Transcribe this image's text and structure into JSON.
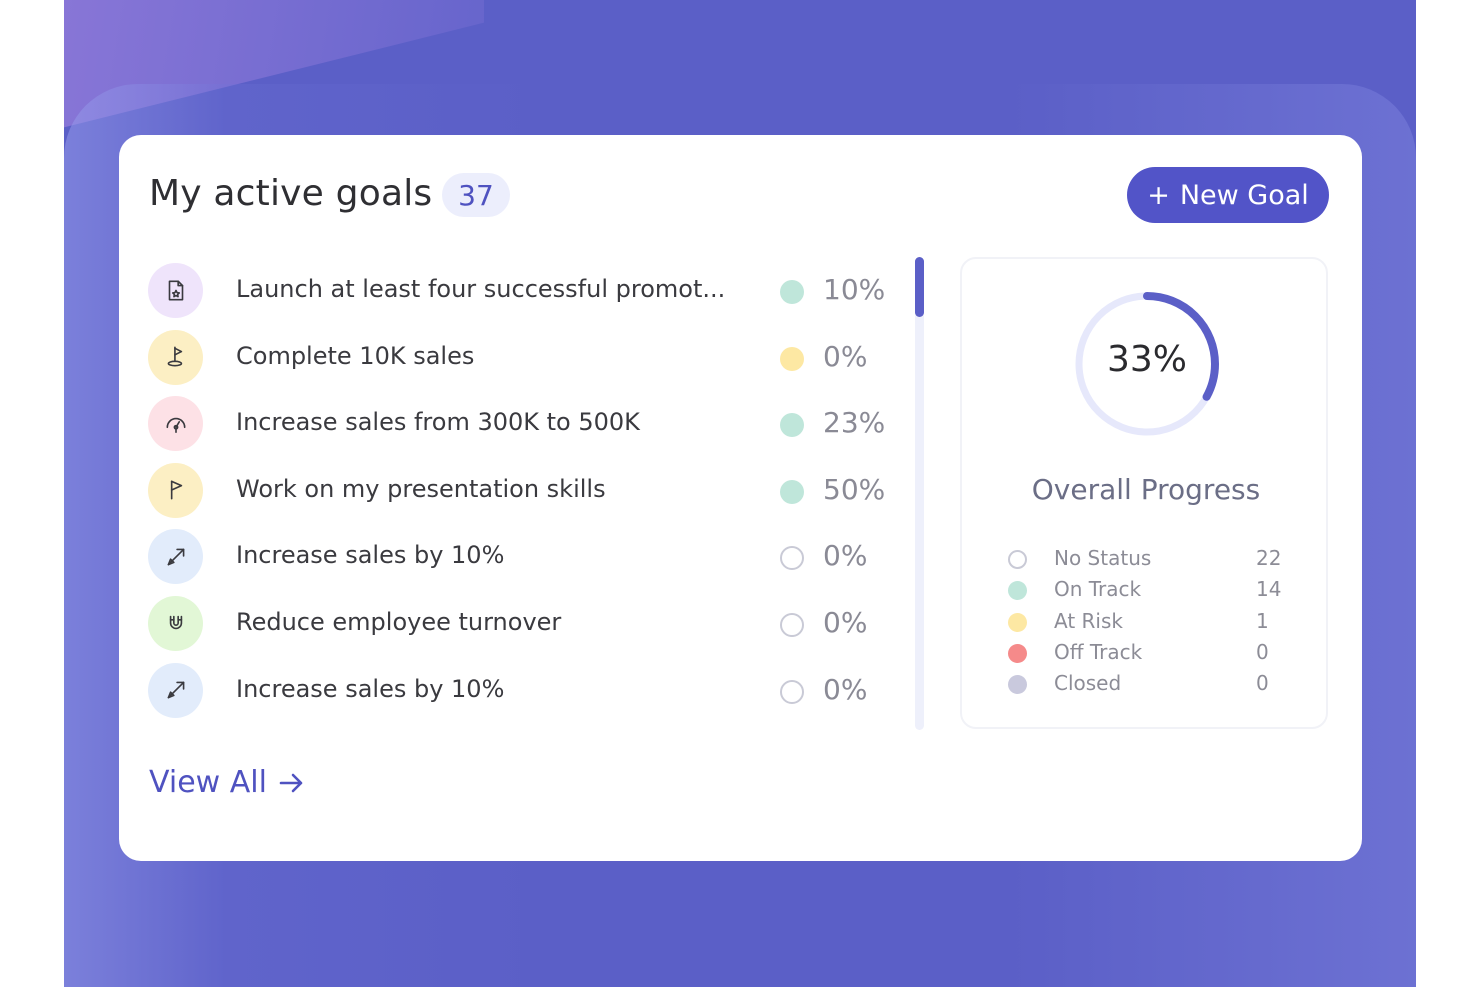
{
  "header": {
    "title": "My active goals",
    "count": "37",
    "new_goal_label": "New Goal"
  },
  "goals": [
    {
      "title": "Launch at least four successful promot...",
      "percent": "10%",
      "status": "on-track",
      "icon": "document-star-icon",
      "icon_bg": "#efe4fb"
    },
    {
      "title": "Complete 10K sales",
      "percent": "0%",
      "status": "at-risk",
      "icon": "golf-flag-icon",
      "icon_bg": "#fcefc4"
    },
    {
      "title": "Increase sales from 300K to 500K",
      "percent": "23%",
      "status": "on-track",
      "icon": "gauge-icon",
      "icon_bg": "#fde1e6"
    },
    {
      "title": "Work on my presentation skills",
      "percent": "50%",
      "status": "on-track",
      "icon": "flag-icon",
      "icon_bg": "#fcefc4"
    },
    {
      "title": "Increase sales by 10%",
      "percent": "0%",
      "status": "no-status",
      "icon": "arrow-diagonal-icon",
      "icon_bg": "#e2ecfb"
    },
    {
      "title": "Reduce employee turnover",
      "percent": "0%",
      "status": "no-status",
      "icon": "magnet-icon",
      "icon_bg": "#e2f7d6"
    },
    {
      "title": "Increase sales by 10%",
      "percent": "0%",
      "status": "no-status",
      "icon": "arrow-diagonal-icon",
      "icon_bg": "#e2ecfb"
    }
  ],
  "overall": {
    "value": "33%",
    "fraction": 0.33,
    "label": "Overall Progress",
    "legend": [
      {
        "name": "No Status",
        "count": "22",
        "status": "no-status"
      },
      {
        "name": "On Track",
        "count": "14",
        "status": "on-track"
      },
      {
        "name": "At Risk",
        "count": "1",
        "status": "at-risk"
      },
      {
        "name": "Off Track",
        "count": "0",
        "status": "off-track"
      },
      {
        "name": "Closed",
        "count": "0",
        "status": "closed"
      }
    ]
  },
  "footer": {
    "view_all_label": "View All"
  },
  "colors": {
    "accent": "#5254c8",
    "no-status": "#ffffff",
    "on-track": "#bfe6da",
    "at-risk": "#fde8a3",
    "off-track": "#f58a8a",
    "closed": "#c9c9dd"
  }
}
